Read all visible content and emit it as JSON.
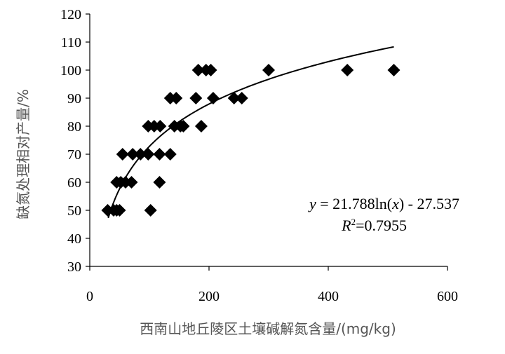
{
  "chart_data": {
    "type": "scatter",
    "title": "",
    "xlabel": "西南山地丘陵区土壤碱解氮含量/(mg/kg)",
    "ylabel": "缺氮处理相对产量/%",
    "xlim": [
      0,
      600
    ],
    "ylim": [
      30,
      120
    ],
    "x_ticks": [
      "0",
      "200",
      "400",
      "600"
    ],
    "y_ticks": [
      "30",
      "40",
      "50",
      "60",
      "70",
      "80",
      "90",
      "100",
      "110",
      "120"
    ],
    "grid": false,
    "marker": "diamond",
    "colors": {
      "marker": "#000000",
      "axis": "#000000",
      "trend": "#000000"
    },
    "points": [
      {
        "x": 30,
        "y": 50
      },
      {
        "x": 40,
        "y": 50
      },
      {
        "x": 45,
        "y": 50
      },
      {
        "x": 50,
        "y": 50
      },
      {
        "x": 45,
        "y": 60
      },
      {
        "x": 52,
        "y": 60
      },
      {
        "x": 60,
        "y": 60
      },
      {
        "x": 70,
        "y": 60
      },
      {
        "x": 55,
        "y": 70
      },
      {
        "x": 72,
        "y": 70
      },
      {
        "x": 85,
        "y": 70
      },
      {
        "x": 98,
        "y": 70
      },
      {
        "x": 117,
        "y": 70
      },
      {
        "x": 135,
        "y": 70
      },
      {
        "x": 98,
        "y": 80
      },
      {
        "x": 108,
        "y": 80
      },
      {
        "x": 118,
        "y": 80
      },
      {
        "x": 142,
        "y": 80
      },
      {
        "x": 152,
        "y": 80
      },
      {
        "x": 157,
        "y": 80
      },
      {
        "x": 187,
        "y": 80
      },
      {
        "x": 135,
        "y": 90
      },
      {
        "x": 145,
        "y": 90
      },
      {
        "x": 178,
        "y": 90
      },
      {
        "x": 207,
        "y": 90
      },
      {
        "x": 242,
        "y": 90
      },
      {
        "x": 255,
        "y": 90
      },
      {
        "x": 182,
        "y": 100
      },
      {
        "x": 195,
        "y": 100
      },
      {
        "x": 203,
        "y": 100
      },
      {
        "x": 300,
        "y": 100
      },
      {
        "x": 432,
        "y": 100
      },
      {
        "x": 510,
        "y": 100
      },
      {
        "x": 102,
        "y": 50
      },
      {
        "x": 117,
        "y": 60
      }
    ],
    "trendline": {
      "type": "log",
      "a": 21.788,
      "b": -27.537,
      "x_range": [
        31,
        510
      ]
    },
    "annotations": {
      "equation": {
        "y": "y",
        "eq_rest": " = 21.788ln(",
        "x": "x",
        "tail": ") - 27.537"
      },
      "r2": {
        "R": "R",
        "sup": "2",
        "value": "=0.7955"
      }
    }
  }
}
